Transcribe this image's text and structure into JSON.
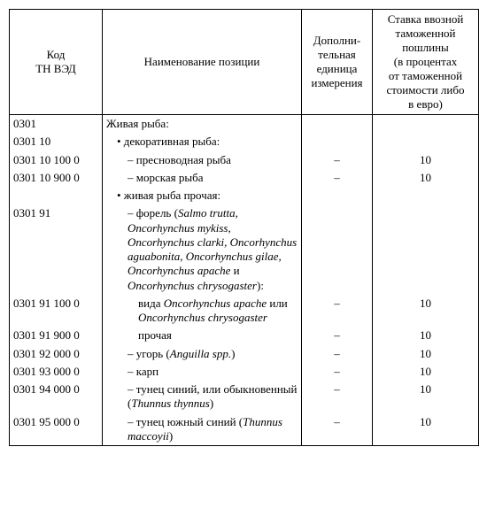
{
  "headers": {
    "code": "Код\nТН ВЭД",
    "name": "Наименование позиции",
    "unit": "Дополни-\nтельная\nединица\nизмерения",
    "duty": "Ставка ввозной\nтаможенной\nпошлины\n(в процентах\nот таможенной\nстоимости либо\nв евро)"
  },
  "rows": [
    {
      "code": "0301",
      "name_pre": "Живая рыба:",
      "unit": "",
      "duty": "",
      "indent": 0
    },
    {
      "code": "0301 10",
      "name_pre": "• декоративная рыба:",
      "unit": "",
      "duty": "",
      "indent": 1
    },
    {
      "code": "0301 10 100 0",
      "name_pre": "– пресноводная рыба",
      "unit": "–",
      "duty": "10",
      "indent": 2
    },
    {
      "code": "0301 10 900 0",
      "name_pre": "– морская рыба",
      "unit": "–",
      "duty": "10",
      "indent": 2
    },
    {
      "code": "",
      "name_pre": "• живая рыба прочая:",
      "unit": "",
      "duty": "",
      "indent": 1
    },
    {
      "code": "0301 91",
      "name_pre": "– форель (",
      "name_it": "Salmo trutta, Oncorhynchus mykiss, Oncorhynchus clarki, Oncorhynchus aguabonita, Oncorhynchus gilae, Oncorhynchus apache",
      "name_mid": " и ",
      "name_it2": "Oncorhynchus chrysogaster",
      "name_post": "):",
      "unit": "",
      "duty": "",
      "indent": 2
    },
    {
      "code": "0301 91 100 0",
      "name_pre": "вида ",
      "name_it": "Oncorhynchus apache",
      "name_mid": " или ",
      "name_it2": "Oncorhynchus chrysogaster",
      "name_post": "",
      "unit": "–",
      "duty": "10",
      "indent": 3
    },
    {
      "code": "0301 91 900 0",
      "name_pre": "прочая",
      "unit": "–",
      "duty": "10",
      "indent": 3
    },
    {
      "code": "0301 92 000 0",
      "name_pre": "– угорь (",
      "name_it": "Anguilla spp.",
      "name_post": ")",
      "unit": "–",
      "duty": "10",
      "indent": 2
    },
    {
      "code": "0301 93 000 0",
      "name_pre": "– карп",
      "unit": "–",
      "duty": "10",
      "indent": 2
    },
    {
      "code": "0301 94 000 0",
      "name_pre": "– тунец синий, или обыкновенный (",
      "name_it": "Thunnus thynnus",
      "name_post": ")",
      "unit": "–",
      "duty": "10",
      "indent": 2
    },
    {
      "code": "0301 95 000 0",
      "name_pre": "– тунец южный синий (",
      "name_it": "Thunnus maccoyii",
      "name_post": ")",
      "unit": "–",
      "duty": "10",
      "indent": 2
    }
  ]
}
